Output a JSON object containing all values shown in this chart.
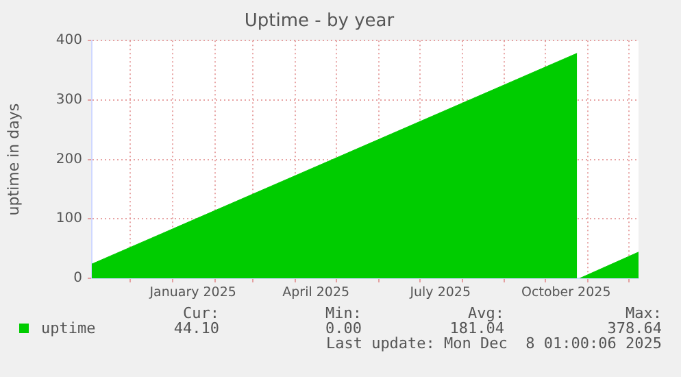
{
  "chart_data": {
    "type": "area",
    "title": "Uptime - by year",
    "ylabel": "uptime in days",
    "x": [
      "2024-11-03",
      "2025-10-24",
      "2025-10-25",
      "2025-10-26",
      "2025-12-08"
    ],
    "series": [
      {
        "name": "uptime",
        "color": "#00cc00",
        "values": [
          24,
          378.64,
          null,
          0,
          44.1
        ]
      }
    ],
    "xlim": [
      "2024-11-03",
      "2025-12-08"
    ],
    "xticks": [
      {
        "value": "2024-12-01",
        "label": null
      },
      {
        "value": "2025-01-01",
        "label": null
      },
      {
        "value": "2025-01-16",
        "label": "January 2025"
      },
      {
        "value": "2025-02-01",
        "label": null
      },
      {
        "value": "2025-03-01",
        "label": null
      },
      {
        "value": "2025-04-01",
        "label": null
      },
      {
        "value": "2025-04-16",
        "label": "April 2025"
      },
      {
        "value": "2025-05-01",
        "label": null
      },
      {
        "value": "2025-06-01",
        "label": null
      },
      {
        "value": "2025-07-01",
        "label": null
      },
      {
        "value": "2025-07-16",
        "label": "July 2025"
      },
      {
        "value": "2025-08-01",
        "label": null
      },
      {
        "value": "2025-09-01",
        "label": null
      },
      {
        "value": "2025-10-01",
        "label": null
      },
      {
        "value": "2025-10-16",
        "label": "October 2025"
      },
      {
        "value": "2025-11-01",
        "label": null
      },
      {
        "value": "2025-12-01",
        "label": null
      }
    ],
    "ylim": [
      0,
      400
    ],
    "yticks": [
      0,
      100,
      200,
      300,
      400
    ],
    "grid": true,
    "legend": "bottom",
    "annotations": [
      "Cur:",
      "Min:",
      "Avg:",
      "Max:",
      "44.10",
      "0.00",
      "181.04",
      "378.64",
      "Last update: Mon Dec  8 01:00:06 2025"
    ]
  }
}
